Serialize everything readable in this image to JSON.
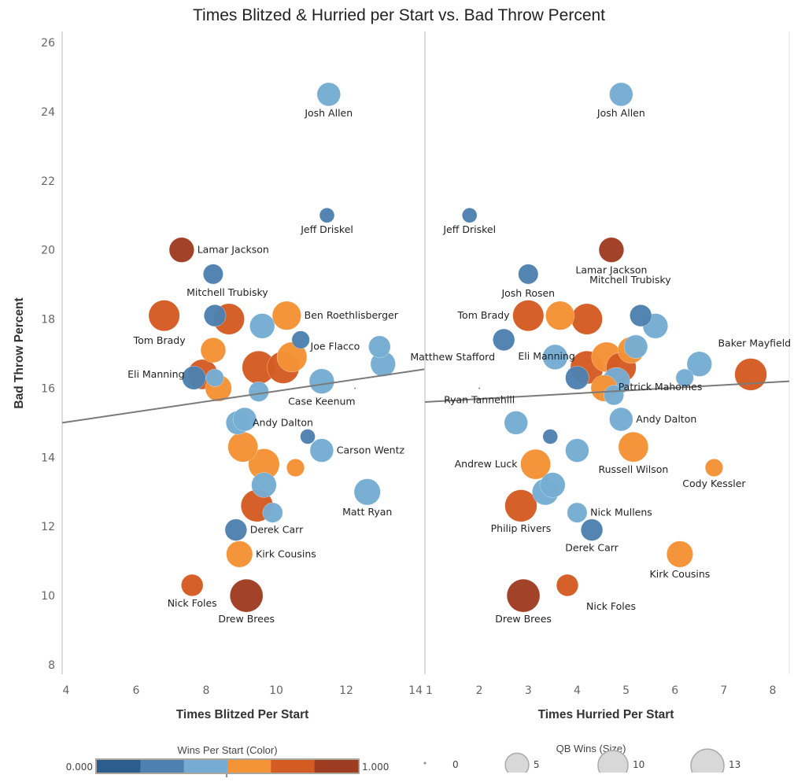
{
  "chart_data": {
    "type": "scatter",
    "title": "Times Blitzed & Hurried per Start vs. Bad Throw Percent",
    "ylabel": "Bad Throw Percent",
    "ylim": [
      8,
      26
    ],
    "yticks": [
      "8",
      "10",
      "12",
      "14",
      "16",
      "18",
      "20",
      "22",
      "24",
      "26"
    ],
    "color_scale": [
      "#2c5d8c",
      "#4e81b0",
      "#76acd3",
      "#f49236",
      "#d45b22",
      "#9e3c22"
    ],
    "panels": [
      {
        "id": "blitzed",
        "xlabel": "Times Blitzed Per Start",
        "xlim": [
          4,
          14
        ],
        "xticks": [
          "4",
          "6",
          "8",
          "10",
          "12",
          "14"
        ],
        "trendline": {
          "x": [
            4,
            14
          ],
          "y": [
            15.0,
            16.55
          ]
        },
        "points": [
          {
            "label": "Josh Allen",
            "x": 11.5,
            "y": 24.5,
            "wins_per_start": 0.45,
            "qb_wins": 5
          },
          {
            "label": "Jeff Driskel",
            "x": 11.45,
            "y": 21.0,
            "wins_per_start": 0.2,
            "qb_wins": 1
          },
          {
            "label": "Lamar Jackson",
            "x": 7.3,
            "y": 20.0,
            "wins_per_start": 0.95,
            "qb_wins": 6
          },
          {
            "label": "Mitchell Trubisky",
            "x": 8.2,
            "y": 19.3,
            "wins_per_start": 0.25,
            "qb_wins": 3
          },
          {
            "label": "Tom Brady",
            "x": 6.8,
            "y": 18.1,
            "wins_per_start": 0.75,
            "qb_wins": 11
          },
          {
            "label": "",
            "x": 8.25,
            "y": 18.1,
            "wins_per_start": 0.25,
            "qb_wins": 4
          },
          {
            "label": "",
            "x": 8.65,
            "y": 18.0,
            "wins_per_start": 0.75,
            "qb_wins": 11
          },
          {
            "label": "",
            "x": 9.6,
            "y": 17.8,
            "wins_per_start": 0.45,
            "qb_wins": 6
          },
          {
            "label": "Ben Roethlisberger",
            "x": 10.3,
            "y": 18.1,
            "wins_per_start": 0.6,
            "qb_wins": 9
          },
          {
            "label": "",
            "x": 10.7,
            "y": 17.4,
            "wins_per_start": 0.25,
            "qb_wins": 2
          },
          {
            "label": "Joe Flacco",
            "x": 12.95,
            "y": 17.2,
            "wins_per_start": 0.45,
            "qb_wins": 4
          },
          {
            "label": "",
            "x": 13.05,
            "y": 16.7,
            "wins_per_start": 0.45,
            "qb_wins": 6
          },
          {
            "label": "",
            "x": 8.2,
            "y": 17.1,
            "wins_per_start": 0.6,
            "qb_wins": 6
          },
          {
            "label": "Eli Manning",
            "x": 7.9,
            "y": 16.4,
            "wins_per_start": 0.75,
            "qb_wins": 10
          },
          {
            "label": "",
            "x": 7.65,
            "y": 16.3,
            "wins_per_start": 0.25,
            "qb_wins": 5
          },
          {
            "label": "",
            "x": 8.25,
            "y": 16.3,
            "wins_per_start": 0.45,
            "qb_wins": 2
          },
          {
            "label": "",
            "x": 8.35,
            "y": 16.0,
            "wins_per_start": 0.6,
            "qb_wins": 7
          },
          {
            "label": "",
            "x": 9.5,
            "y": 16.6,
            "wins_per_start": 0.75,
            "qb_wins": 13
          },
          {
            "label": "",
            "x": 10.2,
            "y": 16.6,
            "wins_per_start": 0.75,
            "qb_wins": 12
          },
          {
            "label": "",
            "x": 10.45,
            "y": 16.9,
            "wins_per_start": 0.6,
            "qb_wins": 10
          },
          {
            "label": "",
            "x": 9.5,
            "y": 15.9,
            "wins_per_start": 0.45,
            "qb_wins": 3
          },
          {
            "label": "Case Keenum",
            "x": 11.3,
            "y": 16.2,
            "wins_per_start": 0.45,
            "qb_wins": 6
          },
          {
            "label": "",
            "x": 12.25,
            "y": 16.0,
            "wins_per_start": 0.0,
            "qb_wins": 0
          },
          {
            "label": "Andy Dalton",
            "x": 8.9,
            "y": 15.0,
            "wins_per_start": 0.45,
            "qb_wins": 5
          },
          {
            "label": "",
            "x": 9.1,
            "y": 15.1,
            "wins_per_start": 0.45,
            "qb_wins": 5
          },
          {
            "label": "",
            "x": 10.9,
            "y": 14.6,
            "wins_per_start": 0.25,
            "qb_wins": 1
          },
          {
            "label": "Carson Wentz",
            "x": 11.3,
            "y": 14.2,
            "wins_per_start": 0.45,
            "qb_wins": 5
          },
          {
            "label": "",
            "x": 9.05,
            "y": 14.3,
            "wins_per_start": 0.6,
            "qb_wins": 10
          },
          {
            "label": "",
            "x": 9.65,
            "y": 13.8,
            "wins_per_start": 0.6,
            "qb_wins": 11
          },
          {
            "label": "",
            "x": 10.55,
            "y": 13.7,
            "wins_per_start": 0.6,
            "qb_wins": 2
          },
          {
            "label": "",
            "x": 9.65,
            "y": 13.2,
            "wins_per_start": 0.45,
            "qb_wins": 6
          },
          {
            "label": "Matt Ryan",
            "x": 12.6,
            "y": 13.0,
            "wins_per_start": 0.45,
            "qb_wins": 7
          },
          {
            "label": "",
            "x": 9.45,
            "y": 12.6,
            "wins_per_start": 0.75,
            "qb_wins": 12
          },
          {
            "label": "",
            "x": 9.9,
            "y": 12.4,
            "wins_per_start": 0.45,
            "qb_wins": 3
          },
          {
            "label": "Derek Carr",
            "x": 8.85,
            "y": 11.9,
            "wins_per_start": 0.25,
            "qb_wins": 4
          },
          {
            "label": "Kirk Cousins",
            "x": 8.95,
            "y": 11.2,
            "wins_per_start": 0.6,
            "qb_wins": 7
          },
          {
            "label": "Nick Foles",
            "x": 7.6,
            "y": 10.3,
            "wins_per_start": 0.75,
            "qb_wins": 4
          },
          {
            "label": "Drew Brees",
            "x": 9.15,
            "y": 10.0,
            "wins_per_start": 0.95,
            "qb_wins": 13
          }
        ]
      },
      {
        "id": "hurried",
        "xlabel": "Times Hurried Per Start",
        "xlim": [
          1,
          8
        ],
        "xticks": [
          "1",
          "2",
          "3",
          "4",
          "5",
          "6",
          "7",
          "8"
        ],
        "trendline": {
          "x": [
            1,
            8
          ],
          "y": [
            15.6,
            16.2
          ]
        },
        "points": [
          {
            "label": "Josh Allen",
            "x": 4.9,
            "y": 24.5,
            "wins_per_start": 0.45,
            "qb_wins": 5
          },
          {
            "label": "Jeff Driskel",
            "x": 1.8,
            "y": 21.0,
            "wins_per_start": 0.2,
            "qb_wins": 1
          },
          {
            "label": "Lamar Jackson",
            "x": 4.7,
            "y": 20.0,
            "wins_per_start": 0.95,
            "qb_wins": 6
          },
          {
            "label": "Josh Rosen",
            "x": 3.0,
            "y": 19.3,
            "wins_per_start": 0.25,
            "qb_wins": 3
          },
          {
            "label": "Tom Brady",
            "x": 3.0,
            "y": 18.1,
            "wins_per_start": 0.75,
            "qb_wins": 11
          },
          {
            "label": "",
            "x": 3.65,
            "y": 18.1,
            "wins_per_start": 0.6,
            "qb_wins": 9
          },
          {
            "label": "Mitchell Trubisky",
            "x": 4.2,
            "y": 18.0,
            "wins_per_start": 0.75,
            "qb_wins": 11
          },
          {
            "label": "",
            "x": 5.3,
            "y": 18.1,
            "wins_per_start": 0.25,
            "qb_wins": 4
          },
          {
            "label": "",
            "x": 5.6,
            "y": 17.8,
            "wins_per_start": 0.45,
            "qb_wins": 6
          },
          {
            "label": "Matthew Stafford",
            "x": 2.5,
            "y": 17.4,
            "wins_per_start": 0.25,
            "qb_wins": 4
          },
          {
            "label": "",
            "x": 3.55,
            "y": 16.9,
            "wins_per_start": 0.45,
            "qb_wins": 6
          },
          {
            "label": "",
            "x": 5.2,
            "y": 17.2,
            "wins_per_start": 0.45,
            "qb_wins": 5
          },
          {
            "label": "",
            "x": 5.1,
            "y": 17.1,
            "wins_per_start": 0.6,
            "qb_wins": 7
          },
          {
            "label": "Eli Manning",
            "x": 4.2,
            "y": 16.6,
            "wins_per_start": 0.75,
            "qb_wins": 13
          },
          {
            "label": "",
            "x": 4.6,
            "y": 16.9,
            "wins_per_start": 0.6,
            "qb_wins": 10
          },
          {
            "label": "",
            "x": 4.9,
            "y": 16.6,
            "wins_per_start": 0.75,
            "qb_wins": 10
          },
          {
            "label": "",
            "x": 4.0,
            "y": 16.3,
            "wins_per_start": 0.25,
            "qb_wins": 5
          },
          {
            "label": "",
            "x": 4.55,
            "y": 16.0,
            "wins_per_start": 0.6,
            "qb_wins": 7
          },
          {
            "label": "",
            "x": 4.8,
            "y": 16.2,
            "wins_per_start": 0.45,
            "qb_wins": 8
          },
          {
            "label": "",
            "x": 4.75,
            "y": 15.8,
            "wins_per_start": 0.45,
            "qb_wins": 3
          },
          {
            "label": "Ryan Tannehill",
            "x": 2.0,
            "y": 16.0,
            "wins_per_start": 0.0,
            "qb_wins": 0
          },
          {
            "label": "Baker Mayfield",
            "x": 6.5,
            "y": 16.7,
            "wins_per_start": 0.45,
            "qb_wins": 6
          },
          {
            "label": "",
            "x": 6.2,
            "y": 16.3,
            "wins_per_start": 0.45,
            "qb_wins": 2
          },
          {
            "label": "Patrick Mahomes",
            "x": 7.55,
            "y": 16.4,
            "wins_per_start": 0.75,
            "qb_wins": 12
          },
          {
            "label": "",
            "x": 2.75,
            "y": 15.0,
            "wins_per_start": 0.45,
            "qb_wins": 5
          },
          {
            "label": "Andy Dalton",
            "x": 4.9,
            "y": 15.1,
            "wins_per_start": 0.45,
            "qb_wins": 5
          },
          {
            "label": "",
            "x": 3.45,
            "y": 14.6,
            "wins_per_start": 0.25,
            "qb_wins": 1
          },
          {
            "label": "",
            "x": 4.0,
            "y": 14.2,
            "wins_per_start": 0.45,
            "qb_wins": 5
          },
          {
            "label": "Russell Wilson",
            "x": 5.15,
            "y": 14.3,
            "wins_per_start": 0.6,
            "qb_wins": 10
          },
          {
            "label": "Andrew Luck",
            "x": 3.15,
            "y": 13.8,
            "wins_per_start": 0.6,
            "qb_wins": 10
          },
          {
            "label": "Cody Kessler",
            "x": 6.8,
            "y": 13.7,
            "wins_per_start": 0.6,
            "qb_wins": 2
          },
          {
            "label": "",
            "x": 3.5,
            "y": 13.2,
            "wins_per_start": 0.45,
            "qb_wins": 6
          },
          {
            "label": "",
            "x": 3.35,
            "y": 13.0,
            "wins_per_start": 0.45,
            "qb_wins": 7
          },
          {
            "label": "Philip Rivers",
            "x": 2.85,
            "y": 12.6,
            "wins_per_start": 0.75,
            "qb_wins": 12
          },
          {
            "label": "Nick Mullens",
            "x": 4.0,
            "y": 12.4,
            "wins_per_start": 0.45,
            "qb_wins": 3
          },
          {
            "label": "Derek Carr",
            "x": 4.3,
            "y": 11.9,
            "wins_per_start": 0.25,
            "qb_wins": 4
          },
          {
            "label": "Kirk Cousins",
            "x": 6.1,
            "y": 11.2,
            "wins_per_start": 0.6,
            "qb_wins": 7
          },
          {
            "label": "Nick Foles",
            "x": 3.8,
            "y": 10.3,
            "wins_per_start": 0.75,
            "qb_wins": 4
          },
          {
            "label": "Drew Brees",
            "x": 2.9,
            "y": 10.0,
            "wins_per_start": 0.95,
            "qb_wins": 13
          }
        ]
      }
    ],
    "color_legend": {
      "title": "Wins Per Start (Color)",
      "min_label": "0.000",
      "max_label": "1.000"
    },
    "size_legend": {
      "title": "QB Wins (Size)",
      "items": [
        {
          "label": "0",
          "value": 0
        },
        {
          "label": "5",
          "value": 5
        },
        {
          "label": "10",
          "value": 10
        },
        {
          "label": "13",
          "value": 13
        }
      ]
    },
    "legend_placement": "bottom"
  }
}
